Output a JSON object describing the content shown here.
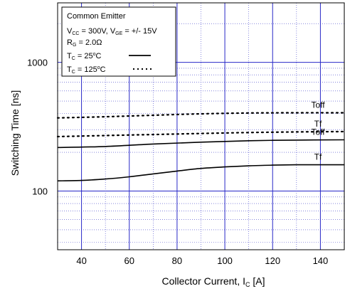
{
  "chart_data": {
    "type": "line",
    "xlabel": "Collector Current, I",
    "xlabel_sub": "C",
    "xlabel_suffix": " [A]",
    "ylabel": "Switching Time [ns]",
    "xlim": [
      30,
      150
    ],
    "ylim": [
      35,
      2900
    ],
    "y_scale": "log",
    "grid": true,
    "x_ticks": [
      40,
      60,
      80,
      100,
      120,
      140
    ],
    "y_ticks": [
      100,
      1000
    ],
    "x_tick_labels": [
      "40",
      "60",
      "80",
      "100",
      "120",
      "140"
    ],
    "y_tick_labels": [
      "100",
      "1000"
    ],
    "series": [
      {
        "label": "Toff",
        "condition": "125C",
        "style": "dotted",
        "x": [
          30,
          50,
          70,
          90,
          110,
          130,
          150
        ],
        "y": [
          370,
          378,
          388,
          398,
          404,
          406,
          406
        ]
      },
      {
        "label": "Tf",
        "condition": "125C",
        "style": "dotted",
        "x": [
          30,
          50,
          70,
          90,
          110,
          130,
          150
        ],
        "y": [
          265,
          270,
          275,
          280,
          285,
          288,
          290
        ]
      },
      {
        "label": "Toff",
        "condition": "25C",
        "style": "solid",
        "x": [
          30,
          50,
          70,
          90,
          110,
          130,
          150
        ],
        "y": [
          218,
          222,
          232,
          240,
          246,
          249,
          250
        ]
      },
      {
        "label": "Tf",
        "condition": "25C",
        "style": "solid",
        "x": [
          30,
          40,
          50,
          60,
          70,
          80,
          90,
          100,
          110,
          120,
          130,
          140,
          150
        ],
        "y": [
          120,
          121,
          124,
          129,
          136,
          143,
          150,
          154,
          157,
          159,
          160,
          160,
          160
        ]
      }
    ],
    "legend": {
      "position": "top-left",
      "line1": "Common Emitter",
      "vcc_label": "V",
      "vcc_sub": "CC",
      "vcc_value": " = 300V, ",
      "vge_label": "V",
      "vge_sub": "GE",
      "vge_value": " = +/- 15V",
      "rg_label": "R",
      "rg_sub": "G",
      "rg_value": " = 2.0Ω",
      "tc1_label": "T",
      "tc1_sub": "C",
      "tc1_value": " = 25",
      "tc1_deg": "o",
      "tc1_unit": "C",
      "tc2_label": "T",
      "tc2_sub": "C",
      "tc2_value": " = 125",
      "tc2_deg": "o",
      "tc2_unit": "C"
    },
    "colors": {
      "major_grid": "#2828c8",
      "minor_grid": "#3c3cc8",
      "curve": "#000000",
      "frame": "#000000"
    }
  }
}
